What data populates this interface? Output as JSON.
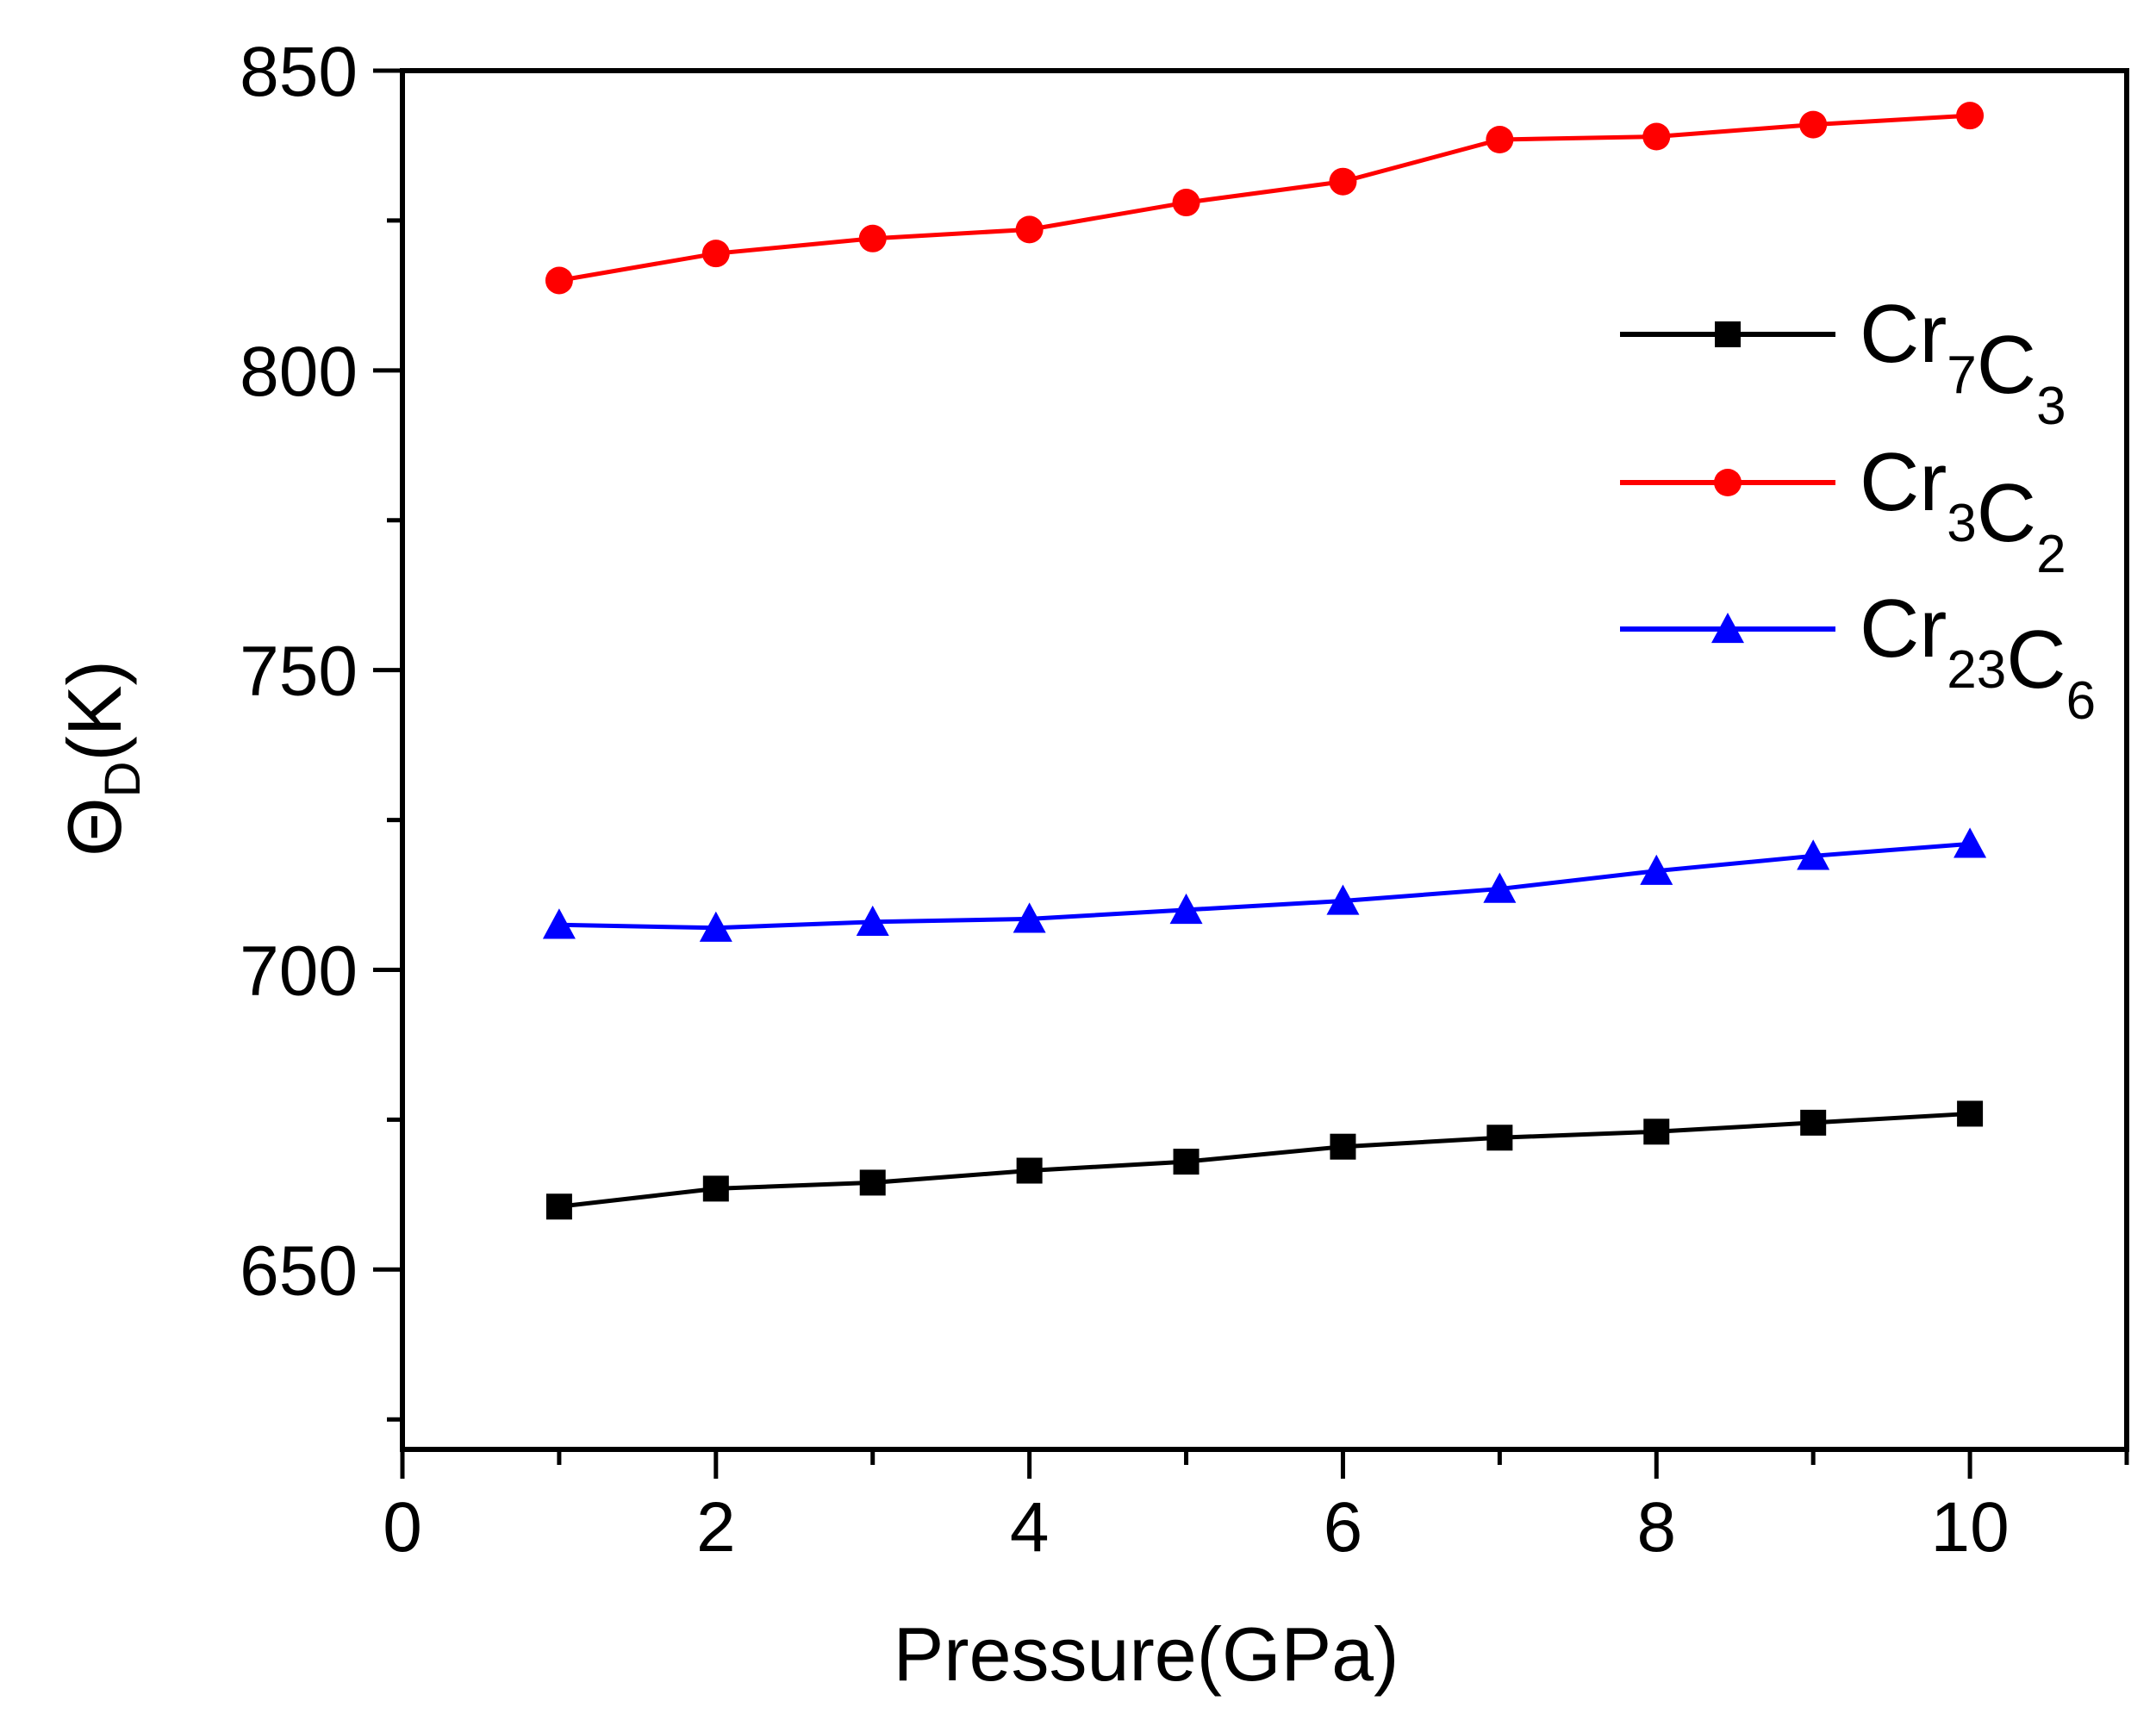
{
  "chart_data": {
    "type": "line",
    "title": "",
    "xlabel": "Pressure(GPa)",
    "ylabel": {
      "main": "Θ",
      "sub": "D",
      "unit": "(K)"
    },
    "xlim": [
      0,
      11
    ],
    "ylim": [
      620,
      850
    ],
    "x_ticks": [
      0,
      2,
      4,
      6,
      8,
      10
    ],
    "y_ticks": [
      650,
      700,
      750,
      800,
      850
    ],
    "grid": false,
    "legend_position": "top-right",
    "x": [
      1,
      2,
      3,
      4,
      5,
      6,
      7,
      8,
      9,
      10
    ],
    "series": [
      {
        "name": "Cr7C3",
        "label_parts": [
          [
            "Cr",
            "7"
          ],
          [
            "C",
            "3"
          ]
        ],
        "color": "#000000",
        "marker": "square",
        "values": [
          660.5,
          663.5,
          664.5,
          666.5,
          668,
          670.5,
          672,
          673,
          674.5,
          676
        ]
      },
      {
        "name": "Cr3C2",
        "label_parts": [
          [
            "Cr",
            "3"
          ],
          [
            "C",
            "2"
          ]
        ],
        "color": "#ff0000",
        "marker": "circle",
        "values": [
          815,
          819.5,
          822,
          823.5,
          828,
          831.5,
          838.5,
          839,
          841,
          842.5
        ]
      },
      {
        "name": "Cr23C6",
        "label_parts": [
          [
            "Cr",
            "23"
          ],
          [
            "C",
            "6"
          ]
        ],
        "color": "#0000ff",
        "marker": "triangle",
        "values": [
          707.5,
          707,
          708,
          708.5,
          710,
          711.5,
          713.5,
          716.5,
          719,
          721
        ]
      }
    ]
  }
}
